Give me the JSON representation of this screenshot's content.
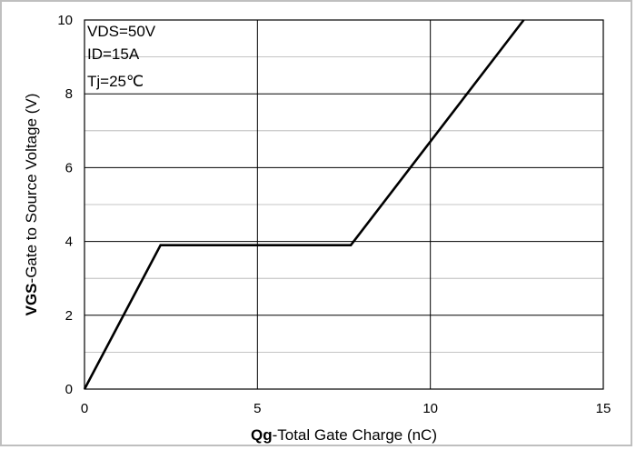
{
  "chart_data": {
    "type": "line",
    "title": "",
    "xlabel_bold": "Qg",
    "xlabel_rest": "-Total Gate Charge (nC)",
    "ylabel_bold": "VGS",
    "ylabel_rest": "-Gate to Source Voltage (V)",
    "xlim": [
      0,
      15
    ],
    "ylim": [
      0,
      10
    ],
    "xticks": [
      0,
      5,
      10,
      15
    ],
    "yticks": [
      0,
      2,
      4,
      6,
      8,
      10
    ],
    "x_tick_labels": [
      "0",
      "5",
      "10",
      "15"
    ],
    "y_tick_labels": [
      "0",
      "2",
      "4",
      "6",
      "8",
      "10"
    ],
    "grid": {
      "major_x": true,
      "major_y": true,
      "minor_y_step": 1
    },
    "annotations": [
      "VDS=50V",
      "ID=15A",
      "Tj=25℃"
    ],
    "series": [
      {
        "x": [
          0,
          2.2,
          7.7,
          12.7
        ],
        "y": [
          0,
          3.9,
          3.9,
          10.0
        ]
      }
    ]
  }
}
